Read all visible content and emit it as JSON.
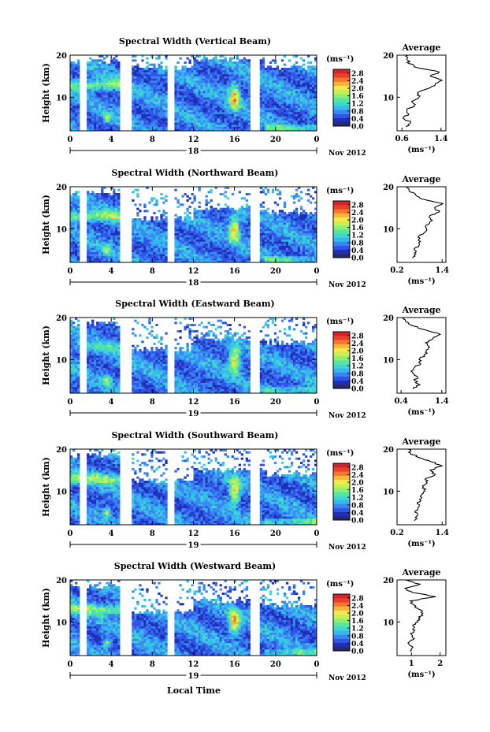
{
  "figure": {
    "date_label": "Nov 2012",
    "xlabel": "Local Time",
    "avg_title": "Average",
    "unit_label": "(ms⁻¹)",
    "panel_ylabel": "Height (km)",
    "colorbar_ticks": [
      "2.8",
      "2.4",
      "2.0",
      "1.6",
      "1.2",
      "0.8",
      "0.4",
      "0.0"
    ],
    "colors": {
      "palette": [
        "#2a2a6a",
        "#1f2fb8",
        "#2f55e8",
        "#3a86f2",
        "#35b8f0",
        "#3fd7d0",
        "#55e6a0",
        "#8ef070",
        "#c8f055",
        "#f4e84a",
        "#f5b43a",
        "#f2782e",
        "#e8402a",
        "#d4232a"
      ]
    }
  },
  "chart_data": [
    {
      "type": "heatmap",
      "title": "Spectral Width (Vertical Beam)",
      "ylabel": "Height (km)",
      "yticks": [
        "20",
        "10"
      ],
      "xticks": [
        "0",
        "4",
        "8",
        "12",
        "16",
        "20",
        "0"
      ],
      "day_label": "18",
      "xlim": [
        0,
        24
      ],
      "ylim": [
        2,
        20
      ],
      "colorbar": {
        "unit": "(ms⁻¹)",
        "range": [
          0.0,
          3.0
        ]
      },
      "average": {
        "title": "Average",
        "xlabel": "(ms⁻¹)",
        "xticks": [
          "0.6",
          "1.4"
        ],
        "xlim": [
          0.5,
          1.5
        ],
        "ytick": "10",
        "heights": [
          3,
          4,
          5,
          6,
          7,
          8,
          9,
          10,
          11,
          12,
          13,
          14,
          15,
          16,
          17,
          18,
          19,
          20
        ],
        "values": [
          0.68,
          0.78,
          0.62,
          0.74,
          0.7,
          0.85,
          0.8,
          0.95,
          0.92,
          1.12,
          1.28,
          1.42,
          1.18,
          1.36,
          0.92,
          0.75,
          0.7,
          0.72
        ]
      }
    },
    {
      "type": "heatmap",
      "title": "Spectral Width (Northward Beam)",
      "ylabel": "Height (km)",
      "yticks": [
        "20",
        "10"
      ],
      "xticks": [
        "0",
        "4",
        "8",
        "12",
        "16",
        "20",
        "0"
      ],
      "day_label": "18",
      "xlim": [
        0,
        24
      ],
      "ylim": [
        2,
        20
      ],
      "colorbar": {
        "unit": "(ms⁻¹)",
        "range": [
          0.0,
          3.0
        ]
      },
      "average": {
        "title": "Average",
        "xlabel": "(ms⁻¹)",
        "xticks": [
          "0.2",
          "1.4"
        ],
        "xlim": [
          0.2,
          1.5
        ],
        "ytick": "10",
        "heights": [
          3,
          4,
          5,
          6,
          7,
          8,
          9,
          10,
          11,
          12,
          13,
          14,
          15,
          16,
          17,
          18,
          19,
          20
        ],
        "values": [
          0.62,
          0.7,
          0.66,
          0.78,
          0.82,
          0.76,
          0.92,
          0.98,
          1.02,
          1.14,
          1.06,
          1.32,
          1.2,
          1.42,
          0.9,
          0.7,
          0.52,
          0.44
        ]
      }
    },
    {
      "type": "heatmap",
      "title": "Spectral Width (Eastward Beam)",
      "ylabel": "Height (km)",
      "yticks": [
        "20",
        "10"
      ],
      "xticks": [
        "0",
        "4",
        "8",
        "12",
        "16",
        "20",
        "0"
      ],
      "day_label": "19",
      "xlim": [
        0,
        24
      ],
      "ylim": [
        2,
        20
      ],
      "colorbar": {
        "unit": "(ms⁻¹)",
        "range": [
          0.0,
          3.0
        ]
      },
      "average": {
        "title": "Average",
        "xlabel": "(ms⁻¹)",
        "xticks": [
          "0.4",
          "1.4"
        ],
        "xlim": [
          0.3,
          1.5
        ],
        "ytick": "10",
        "heights": [
          3,
          4,
          5,
          6,
          7,
          8,
          9,
          10,
          11,
          12,
          13,
          14,
          15,
          16,
          17,
          18,
          19,
          20
        ],
        "values": [
          0.7,
          0.86,
          0.74,
          0.8,
          0.68,
          0.72,
          0.88,
          0.84,
          0.96,
          1.02,
          1.1,
          1.0,
          1.18,
          1.36,
          1.02,
          0.7,
          0.52,
          0.46
        ]
      }
    },
    {
      "type": "heatmap",
      "title": "Spectral Width (Southward Beam)",
      "ylabel": "Height (km)",
      "yticks": [
        "20",
        "10"
      ],
      "xticks": [
        "0",
        "4",
        "8",
        "12",
        "16",
        "20",
        "0"
      ],
      "day_label": "19",
      "xlim": [
        0,
        24
      ],
      "ylim": [
        2,
        20
      ],
      "colorbar": {
        "unit": "(ms⁻¹)",
        "range": [
          0.0,
          3.0
        ]
      },
      "average": {
        "title": "Average",
        "xlabel": "(ms⁻¹)",
        "xticks": [
          "0.2",
          "1.4"
        ],
        "xlim": [
          0.2,
          1.5
        ],
        "ytick": "10",
        "heights": [
          3,
          4,
          5,
          6,
          7,
          8,
          9,
          10,
          11,
          12,
          13,
          14,
          15,
          16,
          17,
          18,
          19,
          20
        ],
        "values": [
          0.66,
          0.72,
          0.68,
          0.76,
          0.74,
          0.8,
          0.84,
          0.94,
          0.9,
          1.0,
          0.96,
          1.22,
          1.08,
          1.4,
          1.1,
          0.78,
          0.56,
          0.5
        ]
      }
    },
    {
      "type": "heatmap",
      "title": "Spectral Width (Westward Beam)",
      "ylabel": "Height (km)",
      "yticks": [
        "20",
        "10"
      ],
      "xticks": [
        "0",
        "4",
        "8",
        "12",
        "16",
        "20",
        "0"
      ],
      "day_label": "19",
      "xlim": [
        0,
        24
      ],
      "ylim": [
        2,
        20
      ],
      "colorbar": {
        "unit": "(ms⁻¹)",
        "range": [
          0.0,
          3.0
        ]
      },
      "average": {
        "title": "Average",
        "xlabel": "(ms⁻¹)",
        "xticks": [
          "1",
          "2"
        ],
        "xlim": [
          0.5,
          2.2
        ],
        "ytick": "10",
        "heights": [
          3,
          4,
          5,
          6,
          7,
          8,
          9,
          10,
          11,
          12,
          13,
          14,
          15,
          16,
          17,
          18,
          19,
          20
        ],
        "values": [
          0.95,
          1.05,
          0.88,
          1.1,
          1.0,
          1.12,
          1.06,
          1.22,
          1.3,
          1.4,
          1.26,
          1.1,
          0.96,
          1.84,
          1.05,
          0.78,
          1.3,
          0.8
        ]
      }
    }
  ]
}
